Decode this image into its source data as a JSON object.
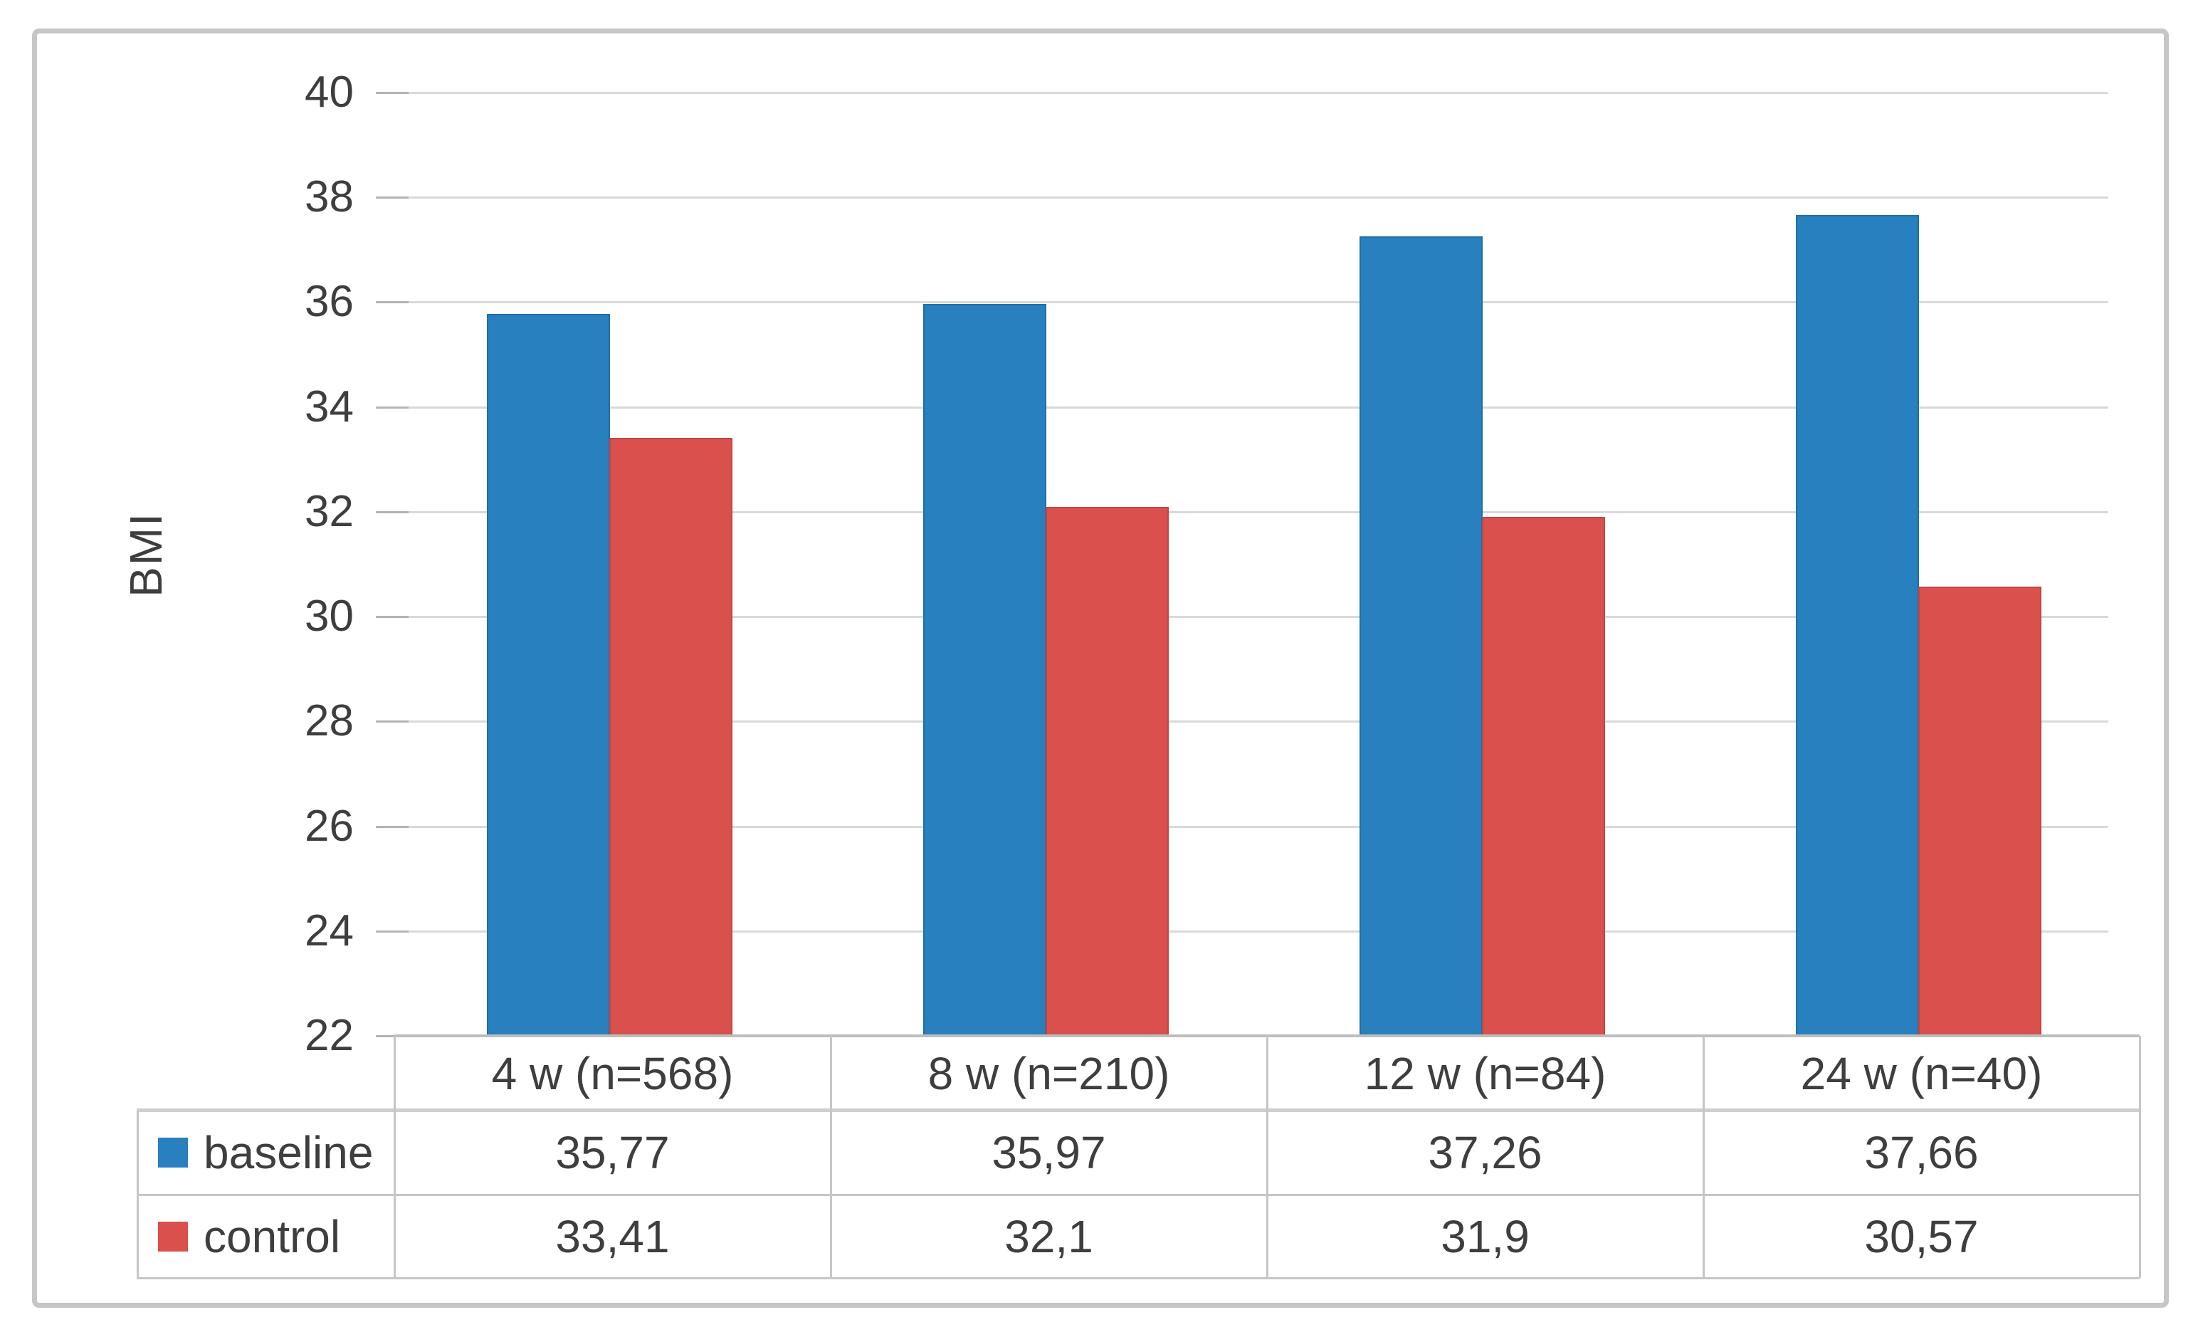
{
  "chart_data": {
    "type": "bar",
    "title": "",
    "xlabel": "",
    "ylabel": "BMI",
    "ylim": [
      22,
      40
    ],
    "yticks": [
      40,
      38,
      36,
      34,
      32,
      30,
      28,
      26,
      24,
      22
    ],
    "grid": true,
    "legend_position": "data-table-left",
    "data_table_shown": true,
    "categories": [
      "4 w (n=568)",
      "8 w (n=210)",
      "12 w (n=84)",
      "24 w (n=40)"
    ],
    "series": [
      {
        "name": "baseline",
        "color": "#2880be",
        "edge_color": "#1f6fa8",
        "values": [
          35.77,
          35.97,
          37.26,
          37.66
        ],
        "value_labels": [
          "35,77",
          "35,97",
          "37,26",
          "37,66"
        ]
      },
      {
        "name": "control",
        "color": "#d9504c",
        "edge_color": "#c24542",
        "values": [
          33.41,
          32.1,
          31.9,
          30.57
        ],
        "value_labels": [
          "33,41",
          "32,1",
          "31,9",
          "30,57"
        ]
      }
    ],
    "frame_color": "#c6c6c6",
    "gridline_color": "#d9d9d9",
    "text_color": "#3e3e3e"
  }
}
